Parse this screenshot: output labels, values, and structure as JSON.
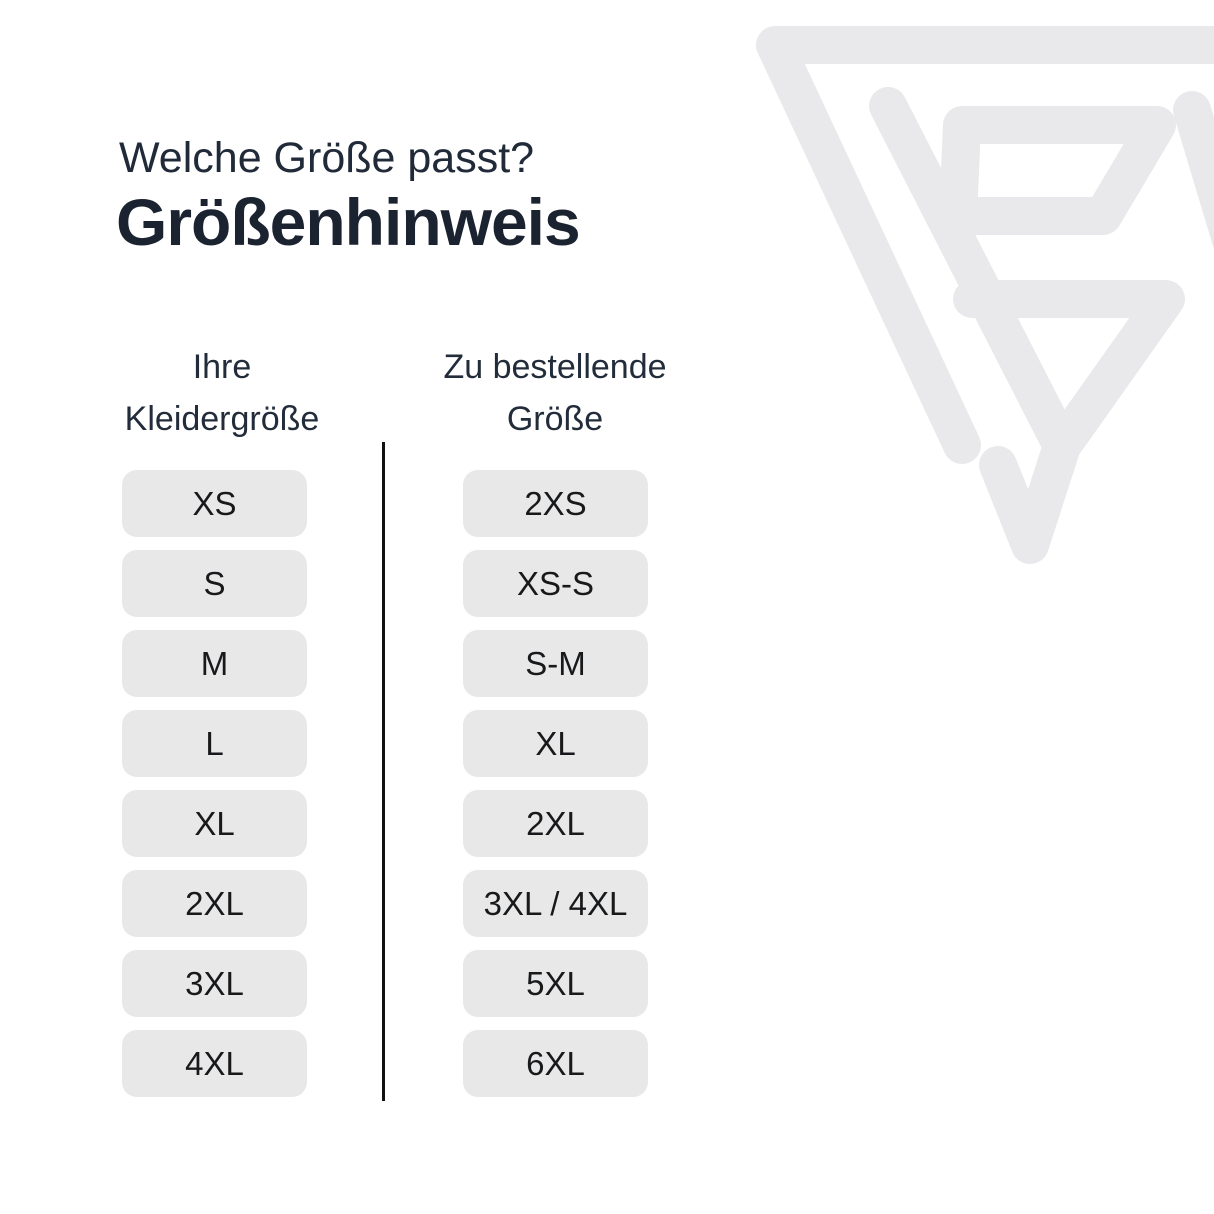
{
  "header": {
    "subtitle": "Welche Größe passt?",
    "title": "Größenhinweis"
  },
  "columns": [
    {
      "header_line1": "Ihre",
      "header_line2": "Kleidergröße",
      "sizes": [
        "XS",
        "S",
        "M",
        "L",
        "XL",
        "2XL",
        "3XL",
        "4XL"
      ]
    },
    {
      "header_line1": "Zu bestellende",
      "header_line2": "Größe",
      "sizes": [
        "2XS",
        "XS-S",
        "S-M",
        "XL",
        "2XL",
        "3XL / 4XL",
        "5XL",
        "6XL"
      ]
    }
  ],
  "watermark": {
    "icon": "brand-triangle-logo-watermark",
    "color": "#e9e9eb"
  },
  "colors": {
    "background": "#ffffff",
    "title_text": "#1b2330",
    "subtitle_text": "#212a38",
    "header_text": "#222c3a",
    "pill_background": "#e8e8e9",
    "pill_text": "#18191b",
    "divider": "#111111"
  }
}
